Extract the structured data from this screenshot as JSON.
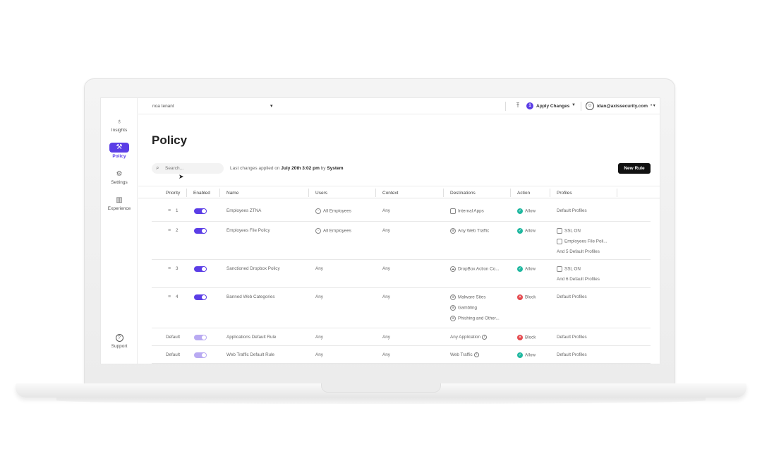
{
  "sidebar": {
    "items": [
      {
        "label": "Insights",
        "icon": "lightbulb-icon",
        "glyph": "💡"
      },
      {
        "label": "Policy",
        "icon": "gavel-icon",
        "glyph": "⚖"
      },
      {
        "label": "Settings",
        "icon": "gear-icon",
        "glyph": "⚙"
      },
      {
        "label": "Experience",
        "icon": "chart-icon",
        "glyph": "📊"
      }
    ],
    "support": {
      "label": "Support",
      "glyph": "?"
    }
  },
  "topbar": {
    "tenant": "noa tenant",
    "pending_count": "1",
    "apply_label": "Apply Changes",
    "user_email": "idan@axissecurity.com"
  },
  "page": {
    "title": "Policy",
    "search_placeholder": "Search...",
    "last_changes_prefix": "Last changes applied on",
    "last_changes_date": "July 20th 3:02 pm",
    "last_changes_by": "by",
    "last_changes_user": "System",
    "new_rule_label": "New Rule"
  },
  "table": {
    "headers": [
      "Priority",
      "Enabled",
      "Name",
      "Users",
      "Context",
      "Destinations",
      "Action",
      "Profiles"
    ],
    "rows": [
      {
        "priority": "1",
        "name": "Employees ZTNA",
        "users": "All Employees",
        "context": "Any",
        "destinations": [
          "Internal Apps"
        ],
        "action": "Allow",
        "profiles": [
          "Default Profiles"
        ]
      },
      {
        "priority": "2",
        "name": "Employees File Policy",
        "users": "All Employees",
        "context": "Any",
        "destinations": [
          "Any Web Traffic"
        ],
        "action": "Allow",
        "profiles": [
          "SSL ON",
          "Employees File Poli...",
          "And 5 Default Profiles"
        ]
      },
      {
        "priority": "3",
        "name": "Sanctioned Dropbox Policy",
        "users": "Any",
        "context": "Any",
        "destinations": [
          "DropBox Action Co..."
        ],
        "action": "Allow",
        "profiles": [
          "SSL ON",
          "And 6 Default Profiles"
        ]
      },
      {
        "priority": "4",
        "name": "Banned Web Categories",
        "users": "Any",
        "context": "Any",
        "destinations": [
          "Malware Sites",
          "Gambling",
          "Phishing and Other..."
        ],
        "action": "Block",
        "profiles": [
          "Default Profiles"
        ]
      },
      {
        "priority": "Default",
        "name": "Applications Default Rule",
        "users": "Any",
        "context": "Any",
        "destinations": [
          "Any Application"
        ],
        "action": "Block",
        "profiles": [
          "Default Profiles"
        ]
      },
      {
        "priority": "Default",
        "name": "Web Traffic Default Rule",
        "users": "Any",
        "context": "Any",
        "destinations": [
          "Web Traffic"
        ],
        "action": "Allow",
        "profiles": [
          "Default Profiles"
        ]
      }
    ]
  },
  "colors": {
    "accent": "#5b3ee6",
    "allow": "#20b8a0",
    "block": "#e5484d"
  }
}
